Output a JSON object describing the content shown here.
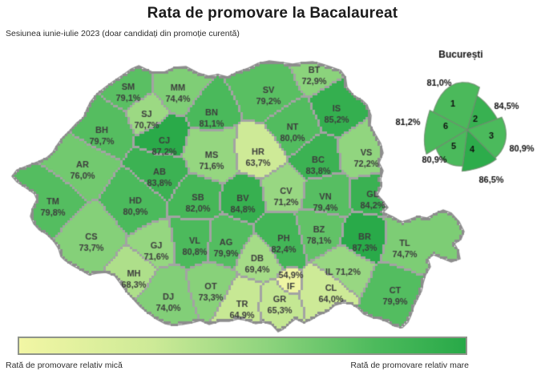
{
  "title": "Rata de promovare la Bacalaureat",
  "subtitle": "Sesiunea iunie-iulie 2023 (doar candidați din promoție curentă)",
  "legend": {
    "low_label": "Rată de promovare relativ mică",
    "high_label": "Rată de promovare relativ mare"
  },
  "colors": {
    "scale": [
      "#f2f6a4",
      "#cdea97",
      "#8fd47e",
      "#4cba5c",
      "#28a948"
    ],
    "county_border": "#a3a3a3",
    "outer_border": "#8d8d8d",
    "county_label": "#3d3d3d",
    "inset_label": "#111111"
  },
  "chart_data": {
    "type": "heatmap",
    "subtype": "choropleth-map",
    "region": "Romania, counties",
    "unit": "%",
    "value_range": [
      54.9,
      87.3
    ],
    "counties": [
      {
        "code": "SM",
        "value": 79.1,
        "label": "79,1%"
      },
      {
        "code": "MM",
        "value": 74.4,
        "label": "74,4%"
      },
      {
        "code": "BT",
        "value": 72.9,
        "label": "72,9%"
      },
      {
        "code": "SV",
        "value": 79.2,
        "label": "79,2%"
      },
      {
        "code": "BN",
        "value": 81.1,
        "label": "81,1%"
      },
      {
        "code": "SJ",
        "value": 70.7,
        "label": "70,7%"
      },
      {
        "code": "IS",
        "value": 85.2,
        "label": "85,2%"
      },
      {
        "code": "BH",
        "value": 79.7,
        "label": "79,7%"
      },
      {
        "code": "CJ",
        "value": 87.2,
        "label": "87,2%"
      },
      {
        "code": "NT",
        "value": 80.0,
        "label": "80,0%"
      },
      {
        "code": "MS",
        "value": 71.6,
        "label": "71,6%"
      },
      {
        "code": "HR",
        "value": 63.7,
        "label": "63,7%"
      },
      {
        "code": "BC",
        "value": 83.8,
        "label": "83,8%"
      },
      {
        "code": "VS",
        "value": 72.2,
        "label": "72,2%"
      },
      {
        "code": "AR",
        "value": 76.0,
        "label": "76,0%"
      },
      {
        "code": "AB",
        "value": 83.8,
        "label": "83,8%"
      },
      {
        "code": "TM",
        "value": 79.8,
        "label": "79,8%"
      },
      {
        "code": "HD",
        "value": 80.9,
        "label": "80,9%"
      },
      {
        "code": "SB",
        "value": 82.0,
        "label": "82,0%"
      },
      {
        "code": "BV",
        "value": 84.8,
        "label": "84,8%"
      },
      {
        "code": "CV",
        "value": 71.2,
        "label": "71,2%"
      },
      {
        "code": "VN",
        "value": 79.4,
        "label": "79,4%"
      },
      {
        "code": "GL",
        "value": 84.2,
        "label": "84,2%"
      },
      {
        "code": "CS",
        "value": 73.7,
        "label": "73,7%"
      },
      {
        "code": "GJ",
        "value": 71.6,
        "label": "71,6%"
      },
      {
        "code": "VL",
        "value": 80.8,
        "label": "80,8%"
      },
      {
        "code": "AG",
        "value": 79.9,
        "label": "79,9%"
      },
      {
        "code": "PH",
        "value": 82.4,
        "label": "82,4%"
      },
      {
        "code": "BZ",
        "value": 78.1,
        "label": "78,1%"
      },
      {
        "code": "BR",
        "value": 87.3,
        "label": "87,3%"
      },
      {
        "code": "TL",
        "value": 74.7,
        "label": "74,7%"
      },
      {
        "code": "MH",
        "value": 68.3,
        "label": "68,3%"
      },
      {
        "code": "DB",
        "value": 69.4,
        "label": "69,4%"
      },
      {
        "code": "IL",
        "value": 71.2,
        "label": "71,2%"
      },
      {
        "code": "DJ",
        "value": 74.0,
        "label": "74,0%"
      },
      {
        "code": "OT",
        "value": 73.3,
        "label": "73,3%"
      },
      {
        "code": "TR",
        "value": 64.9,
        "label": "64,9%"
      },
      {
        "code": "GR",
        "value": 65.3,
        "label": "65,3%"
      },
      {
        "code": "IF",
        "value": 54.9,
        "label": "54,9%"
      },
      {
        "code": "CL",
        "value": 64.0,
        "label": "64,0%"
      },
      {
        "code": "CT",
        "value": 79.9,
        "label": "79,9%"
      }
    ],
    "bucharest": {
      "title": "București",
      "sectors": [
        {
          "sector": "1",
          "value": 81.0,
          "label": "81,0%"
        },
        {
          "sector": "2",
          "value": 84.5,
          "label": "84,5%"
        },
        {
          "sector": "3",
          "value": 80.9,
          "label": "80,9%"
        },
        {
          "sector": "4",
          "value": 86.5,
          "label": "86,5%"
        },
        {
          "sector": "5",
          "value": 80.9,
          "label": "80,9%"
        },
        {
          "sector": "6",
          "value": 81.2,
          "label": "81,2%"
        }
      ]
    }
  }
}
